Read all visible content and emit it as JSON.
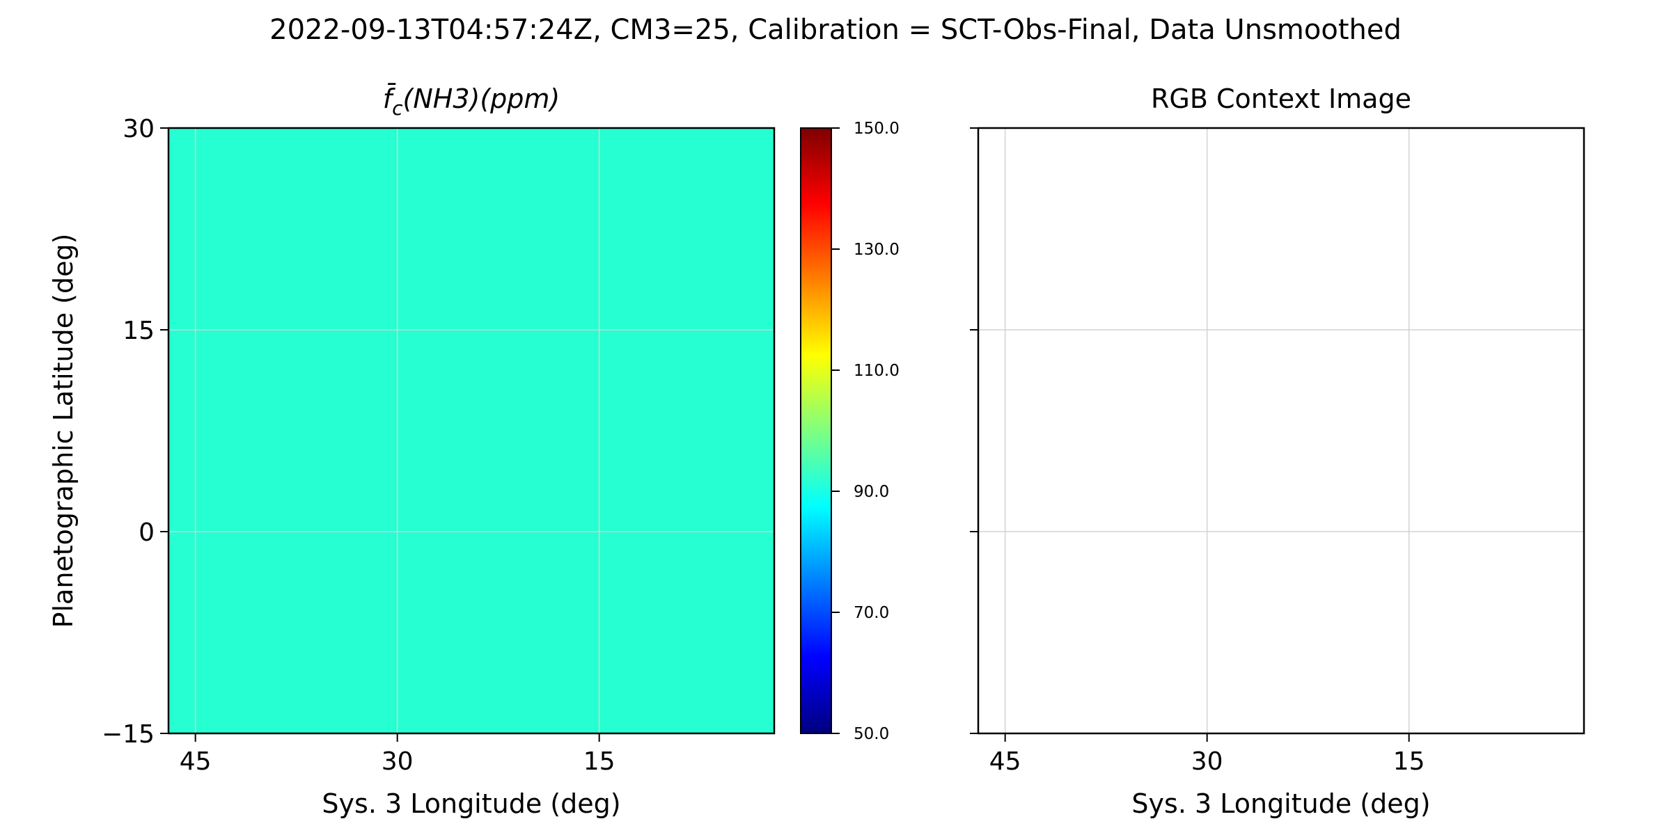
{
  "figure": {
    "suptitle": "2022-09-13T04:57:24Z, CM3=25, Calibration = SCT-Obs-Final, Data Unsmoothed"
  },
  "chart_data": [
    {
      "type": "heatmap",
      "title": "f̄c(NH3)(ppm)",
      "title_parts": {
        "base": "f̄",
        "sub": "c",
        "rest": "(NH3)(ppm)"
      },
      "xlabel": "Sys. 3 Longitude (deg)",
      "ylabel": "Planetographic Latitude (deg)",
      "xlim": [
        47,
        2
      ],
      "ylim": [
        -15,
        30
      ],
      "xticks": [
        45,
        30,
        15
      ],
      "xticklabels": [
        "45",
        "30",
        "15"
      ],
      "yticks": [
        30,
        15,
        0,
        -15
      ],
      "yticklabels": [
        "30",
        "15",
        "0",
        "−15"
      ],
      "grid": true,
      "uniform_value": 87,
      "fill_color": "#26ffd1",
      "colorbar": {
        "colormap": "jet",
        "vmin": 50,
        "vmax": 150,
        "ticks": [
          150,
          130,
          110,
          90,
          70,
          50
        ],
        "ticklabels": [
          "150.0",
          "130.0",
          "110.0",
          "90.0",
          "70.0",
          "50.0"
        ]
      }
    },
    {
      "type": "image",
      "title": "RGB Context Image",
      "xlabel": "Sys. 3 Longitude (deg)",
      "xlim": [
        47,
        2
      ],
      "ylim": [
        -15,
        30
      ],
      "xticks": [
        45,
        30,
        15
      ],
      "xticklabels": [
        "45",
        "30",
        "15"
      ],
      "yticks": [
        30,
        15,
        0,
        -15
      ],
      "grid": true
    }
  ],
  "colors": {
    "axes": "#000000",
    "grid": "#d3d3d3",
    "jet_stops": [
      "#00007f",
      "#0000ff",
      "#007fff",
      "#00ffff",
      "#7fff7f",
      "#ffff00",
      "#ff7f00",
      "#ff0000",
      "#7f0000"
    ]
  }
}
